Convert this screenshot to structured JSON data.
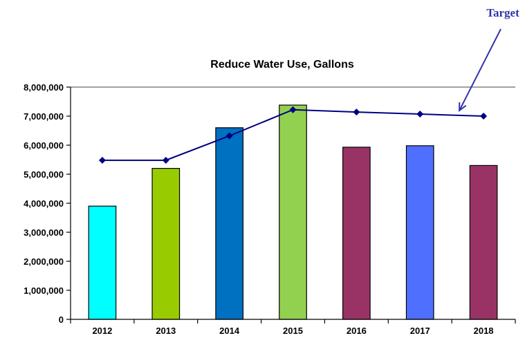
{
  "chart_data": {
    "type": "bar",
    "title": "Reduce Water Use, Gallons",
    "categories": [
      "2012",
      "2013",
      "2014",
      "2015",
      "2016",
      "2017",
      "2018"
    ],
    "values": [
      3900000,
      5200000,
      6600000,
      7380000,
      5930000,
      5980000,
      5300000
    ],
    "bar_colors": [
      "#00ffff",
      "#99cc00",
      "#0070c0",
      "#92d050",
      "#993366",
      "#4f6fff",
      "#993366"
    ],
    "line_series": {
      "type": "line",
      "values": [
        5480000,
        5480000,
        6320000,
        7220000,
        7140000,
        7070000,
        7000000
      ],
      "color": "#000080"
    },
    "ylim": [
      0,
      8000000
    ],
    "yticks": [
      0,
      1000000,
      2000000,
      3000000,
      4000000,
      5000000,
      6000000,
      7000000,
      8000000
    ],
    "ytick_labels": [
      "0",
      "1,000,000",
      "2,000,000",
      "3,000,000",
      "4,000,000",
      "5,000,000",
      "6,000,000",
      "7,000,000",
      "8,000,000"
    ],
    "annotation": {
      "text": "Target",
      "points_to_index": 6
    },
    "grid": false,
    "legend": "none"
  }
}
